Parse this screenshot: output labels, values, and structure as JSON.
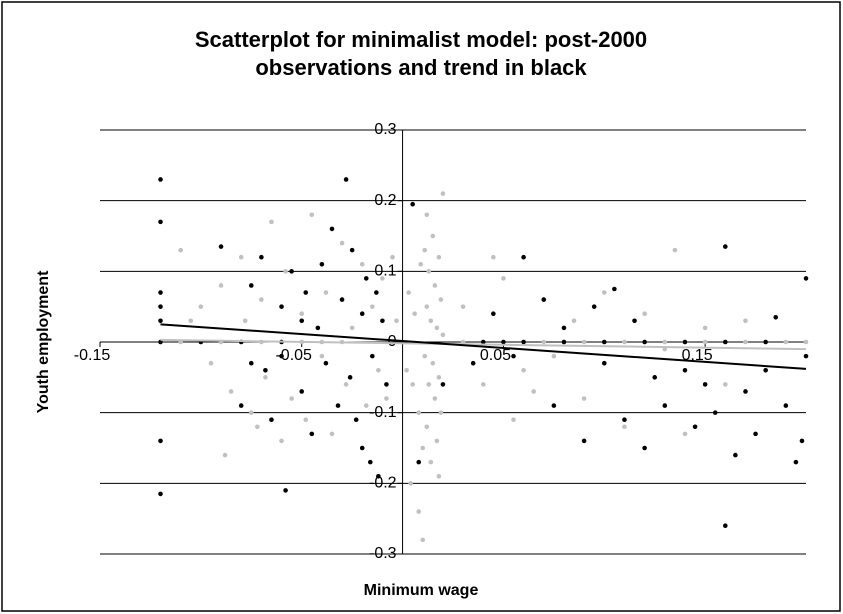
{
  "chart_data": {
    "type": "scatter",
    "title": "Scatterplot for minimalist model: post-2000 observations and trend in black",
    "x_label": "Minimum wage",
    "y_label": "Youth employment",
    "xlim": [
      -0.15,
      0.2
    ],
    "ylim": [
      -0.3,
      0.3
    ],
    "xticks": [
      -0.15,
      -0.05,
      0.05,
      0.15
    ],
    "yticks": [
      0.3,
      0.2,
      0.1,
      0,
      -0.1,
      -0.2,
      -0.3
    ],
    "grid": true,
    "series": [
      {
        "color": "#c0c0c0",
        "x": [
          -0.12,
          -0.11,
          -0.1,
          -0.09,
          -0.08,
          -0.07,
          -0.06,
          -0.05,
          -0.04,
          -0.03,
          0.03,
          0.04,
          0.05,
          0.06,
          0.07,
          0.08,
          0.09,
          0.1,
          0.11,
          0.12,
          0.13,
          0.14,
          0.15,
          0.16,
          0.17,
          0.18,
          0.19,
          0.2,
          0.012,
          0.015,
          0.018,
          0.013,
          0.016,
          0.019,
          0.012,
          0.014,
          0.017,
          0.02,
          0.011,
          0.015,
          0.018,
          0.013,
          0.016,
          0.019,
          0.012,
          0.017,
          0.014,
          0.018,
          0.02,
          0.011,
          -0.01,
          -0.005,
          0.003,
          0.005,
          0.008,
          -0.008,
          0.006,
          0.002,
          -0.003,
          0.009,
          0.01,
          0.008,
          0.01,
          0.004,
          -0.1,
          -0.095,
          -0.09,
          -0.085,
          -0.08,
          -0.078,
          -0.075,
          -0.07,
          -0.068,
          -0.065,
          -0.06,
          -0.058,
          -0.055,
          -0.05,
          -0.048,
          -0.045,
          -0.04,
          -0.038,
          -0.035,
          -0.03,
          -0.028,
          -0.025,
          -0.02,
          -0.018,
          -0.015,
          -0.012,
          -0.088,
          -0.072,
          -0.11,
          -0.105,
          0.03,
          0.04,
          0.05,
          0.06,
          0.07,
          0.075,
          0.085,
          0.09,
          0.1,
          0.11,
          0.12,
          0.13,
          0.135,
          0.14,
          0.15,
          0.16,
          0.17,
          0.045,
          0.055,
          0.065
        ],
        "values": [
          0,
          0,
          0,
          0,
          0,
          0,
          0,
          0,
          0,
          0,
          0,
          0,
          0,
          0,
          0,
          0,
          0,
          0,
          0,
          0,
          0,
          0,
          0,
          0,
          0,
          0,
          0,
          0,
          0.18,
          0.15,
          0.12,
          0.1,
          0.08,
          0.06,
          0.05,
          0.03,
          0.02,
          0.01,
          -0.02,
          -0.03,
          -0.05,
          -0.06,
          -0.08,
          -0.1,
          -0.12,
          -0.14,
          -0.17,
          -0.19,
          0.21,
          0.13,
          0.09,
          0.12,
          0.07,
          -0.06,
          -0.1,
          -0.08,
          0.04,
          -0.04,
          0.03,
          0.11,
          -0.15,
          -0.24,
          -0.28,
          -0.2,
          0.05,
          -0.03,
          0.08,
          -0.07,
          0.12,
          0.03,
          -0.1,
          0.06,
          -0.05,
          0.17,
          -0.14,
          0.1,
          -0.08,
          0.04,
          -0.11,
          0.18,
          -0.02,
          0.07,
          -0.13,
          0.14,
          -0.06,
          0.02,
          0.11,
          -0.09,
          0.05,
          -0.04,
          -0.16,
          -0.12,
          0.13,
          0.03,
          0.05,
          -0.06,
          0.09,
          -0.04,
          0.06,
          -0.02,
          0.03,
          -0.08,
          0.07,
          -0.12,
          0.04,
          -0.01,
          0.13,
          -0.13,
          0.02,
          -0.06,
          0.03,
          0.12,
          -0.11,
          -0.07
        ]
      },
      {
        "color": "#000000",
        "x": [
          -0.12,
          -0.1,
          -0.08,
          -0.06,
          0.04,
          0.05,
          0.06,
          0.08,
          0.1,
          0.12,
          0.14,
          0.16,
          0.18,
          -0.12,
          -0.12,
          -0.12,
          -0.12,
          -0.12,
          -0.12,
          -0.12,
          -0.09,
          -0.08,
          -0.075,
          -0.07,
          -0.068,
          -0.065,
          -0.06,
          -0.058,
          -0.055,
          -0.05,
          -0.048,
          -0.045,
          -0.042,
          -0.04,
          -0.038,
          -0.035,
          -0.032,
          -0.03,
          -0.028,
          -0.026,
          -0.025,
          -0.023,
          -0.02,
          -0.018,
          -0.016,
          -0.015,
          -0.013,
          -0.012,
          -0.01,
          -0.008,
          -0.02,
          -0.05,
          -0.06,
          -0.075,
          0.005,
          0.008,
          0.02,
          0.035,
          0.045,
          0.055,
          0.06,
          0.07,
          0.075,
          0.08,
          0.09,
          0.095,
          0.1,
          0.105,
          0.11,
          0.115,
          0.12,
          0.125,
          0.13,
          0.14,
          0.145,
          0.15,
          0.155,
          0.16,
          0.165,
          0.17,
          0.175,
          0.18,
          0.185,
          0.19,
          0.195,
          0.2,
          0.2,
          0.198,
          0.16
        ],
        "values": [
          0,
          0,
          0,
          0,
          0,
          0,
          0,
          0,
          0,
          0,
          0,
          0,
          0,
          0.23,
          0.17,
          0.07,
          0.05,
          0.03,
          -0.14,
          -0.215,
          0.135,
          -0.09,
          0.08,
          0.12,
          -0.04,
          -0.11,
          0.05,
          -0.21,
          0.1,
          -0.07,
          0.07,
          -0.13,
          0.02,
          0.11,
          -0.03,
          0.16,
          -0.09,
          0.06,
          0.23,
          -0.05,
          0.13,
          -0.11,
          0.04,
          0.09,
          -0.17,
          -0.02,
          0.07,
          -0.19,
          0.03,
          -0.06,
          -0.15,
          0.03,
          -0.02,
          -0.03,
          0.195,
          -0.17,
          -0.06,
          -0.03,
          0.04,
          -0.02,
          0.12,
          0.06,
          -0.09,
          0.02,
          -0.14,
          0.05,
          -0.03,
          0.075,
          -0.11,
          0.03,
          -0.15,
          -0.05,
          -0.09,
          -0.04,
          -0.12,
          -0.06,
          -0.1,
          0.135,
          -0.16,
          -0.07,
          -0.13,
          -0.04,
          0.035,
          -0.09,
          -0.17,
          0.09,
          -0.02,
          -0.14,
          -0.26
        ]
      }
    ],
    "trendlines": [
      {
        "color": "#c0c0c0",
        "x": [
          -0.12,
          0.2
        ],
        "values": [
          0.003,
          -0.01
        ]
      },
      {
        "color": "#000000",
        "x": [
          -0.12,
          0.2
        ],
        "values": [
          0.025,
          -0.038
        ]
      }
    ]
  }
}
